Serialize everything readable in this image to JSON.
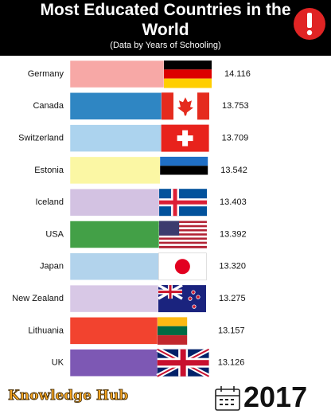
{
  "chart_data": {
    "type": "hbar",
    "title": "Most Educated Countries in the World",
    "subtitle": "(Data  by Years of Schooling)",
    "categories": [
      "Germany",
      "Canada",
      "Switzerland",
      "Estonia",
      "Iceland",
      "USA",
      "Japan",
      "New Zealand",
      "Lithuania",
      "UK"
    ],
    "values": [
      14.116,
      13.753,
      13.709,
      13.542,
      13.403,
      13.392,
      13.32,
      13.275,
      13.157,
      13.126
    ],
    "value_labels": [
      "14.116",
      "13.753",
      "13.709",
      "13.542",
      "13.403",
      "13.392",
      "13.320",
      "13.275",
      "13.157",
      "13.126"
    ],
    "colors": [
      "#f7a8a6",
      "#2f86c3",
      "#acd3ee",
      "#fbf7a4",
      "#d3c2e2",
      "#43a047",
      "#b2d3ec",
      "#d8c8e6",
      "#f2432f",
      "#7d58b4"
    ],
    "xlim": [
      0,
      15
    ],
    "brand": "Knowledge Hub",
    "period": "2017"
  }
}
